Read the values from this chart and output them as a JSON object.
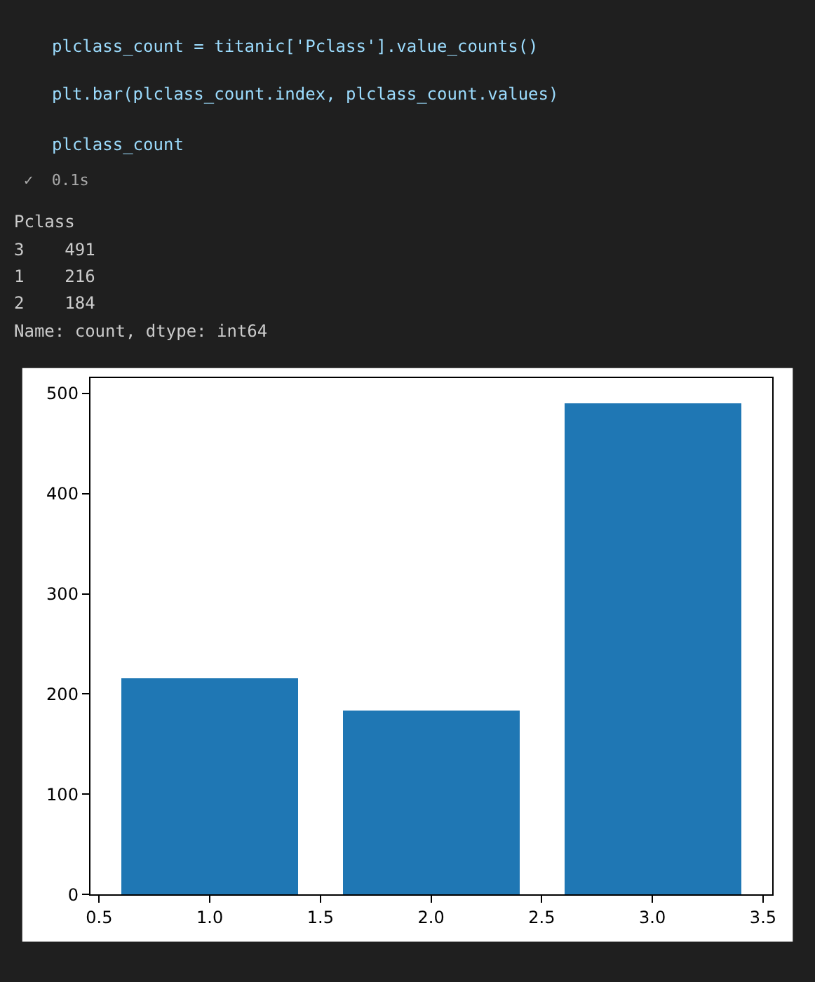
{
  "chart_data": {
    "type": "bar",
    "x": [
      1,
      2,
      3
    ],
    "values": [
      216,
      184,
      491
    ],
    "color": "#1f77b4",
    "xlim": [
      0.46,
      3.54
    ],
    "xticks": [
      {
        "value": 0.5,
        "label": "0.5"
      },
      {
        "value": 1,
        "label": "1.0"
      },
      {
        "value": 1.5,
        "label": "1.5"
      },
      {
        "value": 2,
        "label": "2.0"
      },
      {
        "value": 2.5,
        "label": "2.5"
      },
      {
        "value": 3,
        "label": "3.0"
      },
      {
        "value": 3.5,
        "label": "3.5"
      }
    ],
    "ylim": [
      0,
      515.55
    ],
    "yticks": [
      0,
      100,
      200,
      300,
      400,
      500
    ],
    "legend": false,
    "annotations": [
      "plclass_count = titanic['Pclass'].value_counts()",
      "plt.bar(plclass_count.index, plclass_count.values)",
      "plclass_count",
      "✓  0.1s",
      "Pclass",
      "3    491",
      "1    216",
      "2    184",
      "Name: count, dtype: int64"
    ]
  }
}
